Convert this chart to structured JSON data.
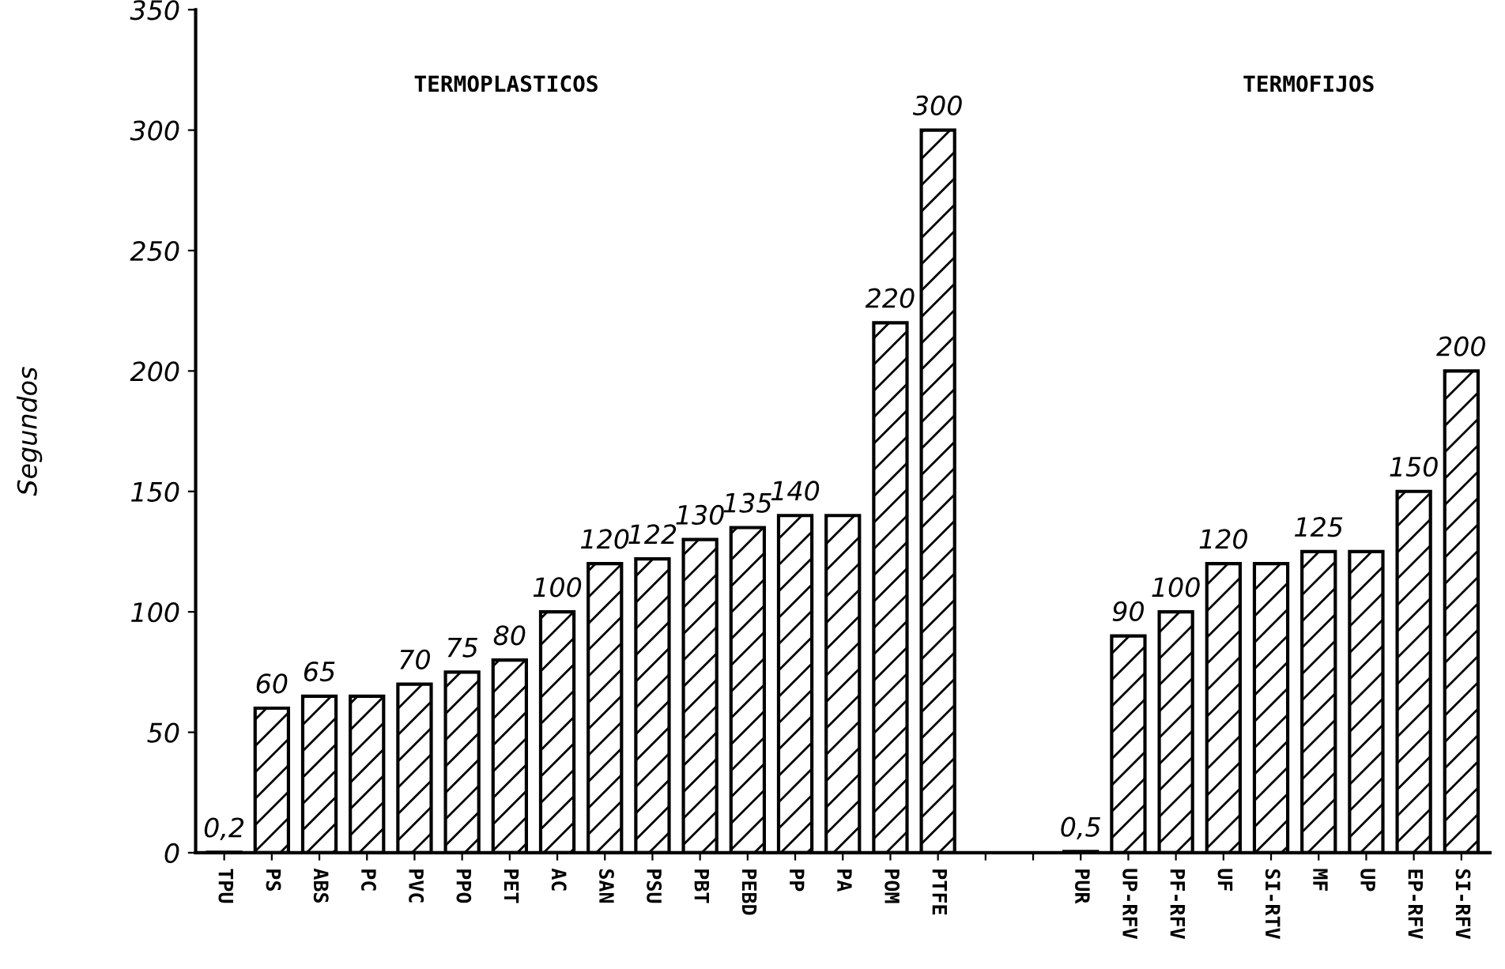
{
  "chart_data": {
    "type": "bar",
    "ylabel": "Segundos",
    "categories": [
      "TPU",
      "PS",
      "ABS",
      "PC",
      "PVC",
      "PPO",
      "PET",
      "AC",
      "SAN",
      "PSU",
      "PBT",
      "PEBD",
      "PP",
      "PA",
      "POM",
      "PTFE",
      null,
      null,
      "PUR",
      "UP-RFV",
      "PF-RFV",
      "UF",
      "SI-RTV",
      "MF",
      "UP",
      "EP-RFV",
      "SI-RFV"
    ],
    "values": [
      0.2,
      60,
      65,
      65,
      70,
      75,
      80,
      100,
      120,
      122,
      130,
      135,
      140,
      140,
      220,
      300,
      null,
      null,
      0.5,
      90,
      100,
      120,
      120,
      125,
      125,
      150,
      200
    ],
    "value_labels": [
      "0,2",
      "60",
      "65",
      null,
      "70",
      "75",
      "80",
      "100",
      "120",
      "122",
      "130",
      "135",
      "140",
      null,
      "220",
      "300",
      null,
      null,
      "0,5",
      "90",
      "100",
      "120",
      null,
      "125",
      null,
      "150",
      "200"
    ],
    "color": "#000000",
    "ylim": [
      0,
      350
    ],
    "yticks": [
      0,
      50,
      100,
      150,
      200,
      250,
      300,
      350
    ],
    "annotations": [
      "TERMOPLASTICOS",
      "TERMOFIJOS"
    ]
  }
}
